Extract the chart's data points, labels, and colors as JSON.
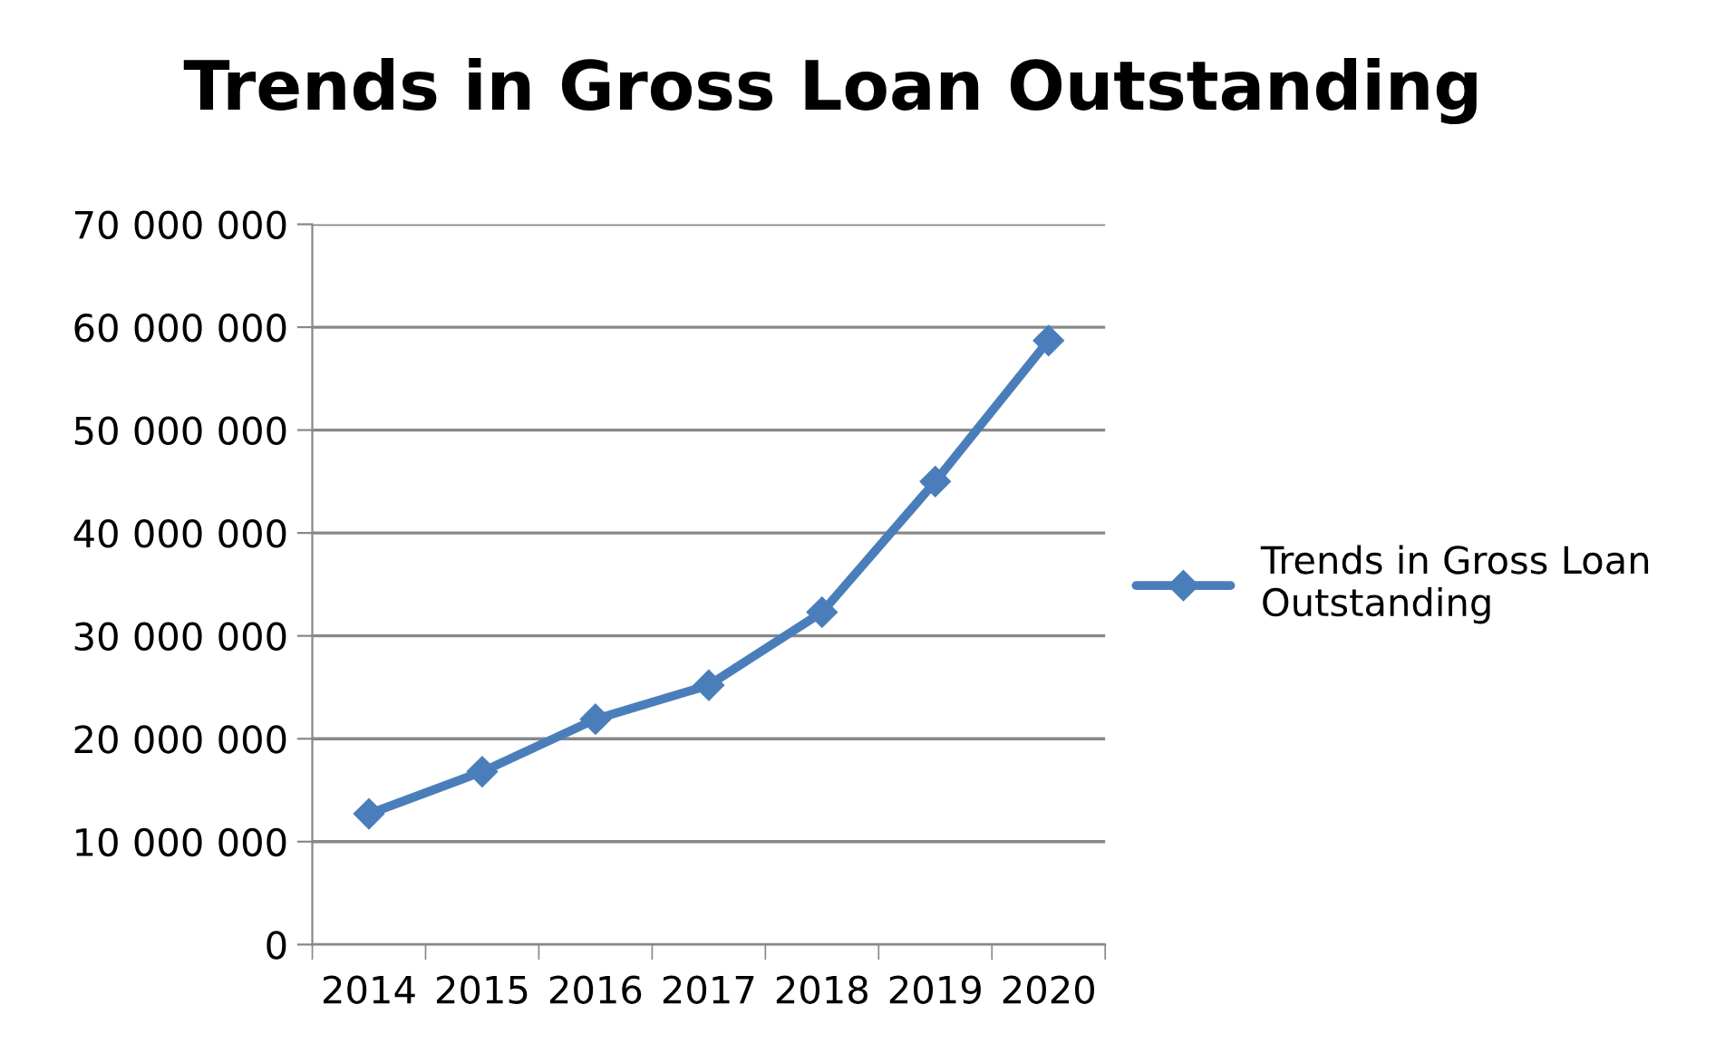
{
  "chart_data": {
    "type": "line",
    "title": "Trends in Gross Loan Outstanding",
    "categories": [
      "2014",
      "2015",
      "2016",
      "2017",
      "2018",
      "2019",
      "2020"
    ],
    "series": [
      {
        "name": "Trends in Gross Loan Outstanding",
        "color": "#4a7ebb",
        "values": [
          12700000,
          16800000,
          21900000,
          25200000,
          32300000,
          45000000,
          58700000
        ]
      }
    ],
    "ylim": [
      0,
      70000000
    ],
    "yticks": [
      {
        "value": 0,
        "label": "0"
      },
      {
        "value": 10000000,
        "label": "10 000 000"
      },
      {
        "value": 20000000,
        "label": "20 000 000"
      },
      {
        "value": 30000000,
        "label": "30 000 000"
      },
      {
        "value": 40000000,
        "label": "40 000 000"
      },
      {
        "value": 50000000,
        "label": "50 000 000"
      },
      {
        "value": 60000000,
        "label": "60 000 000"
      },
      {
        "value": 70000000,
        "label": "70 000 000"
      }
    ],
    "grid": "y",
    "legend": "right",
    "marker": "diamond",
    "line_style": "solid"
  }
}
